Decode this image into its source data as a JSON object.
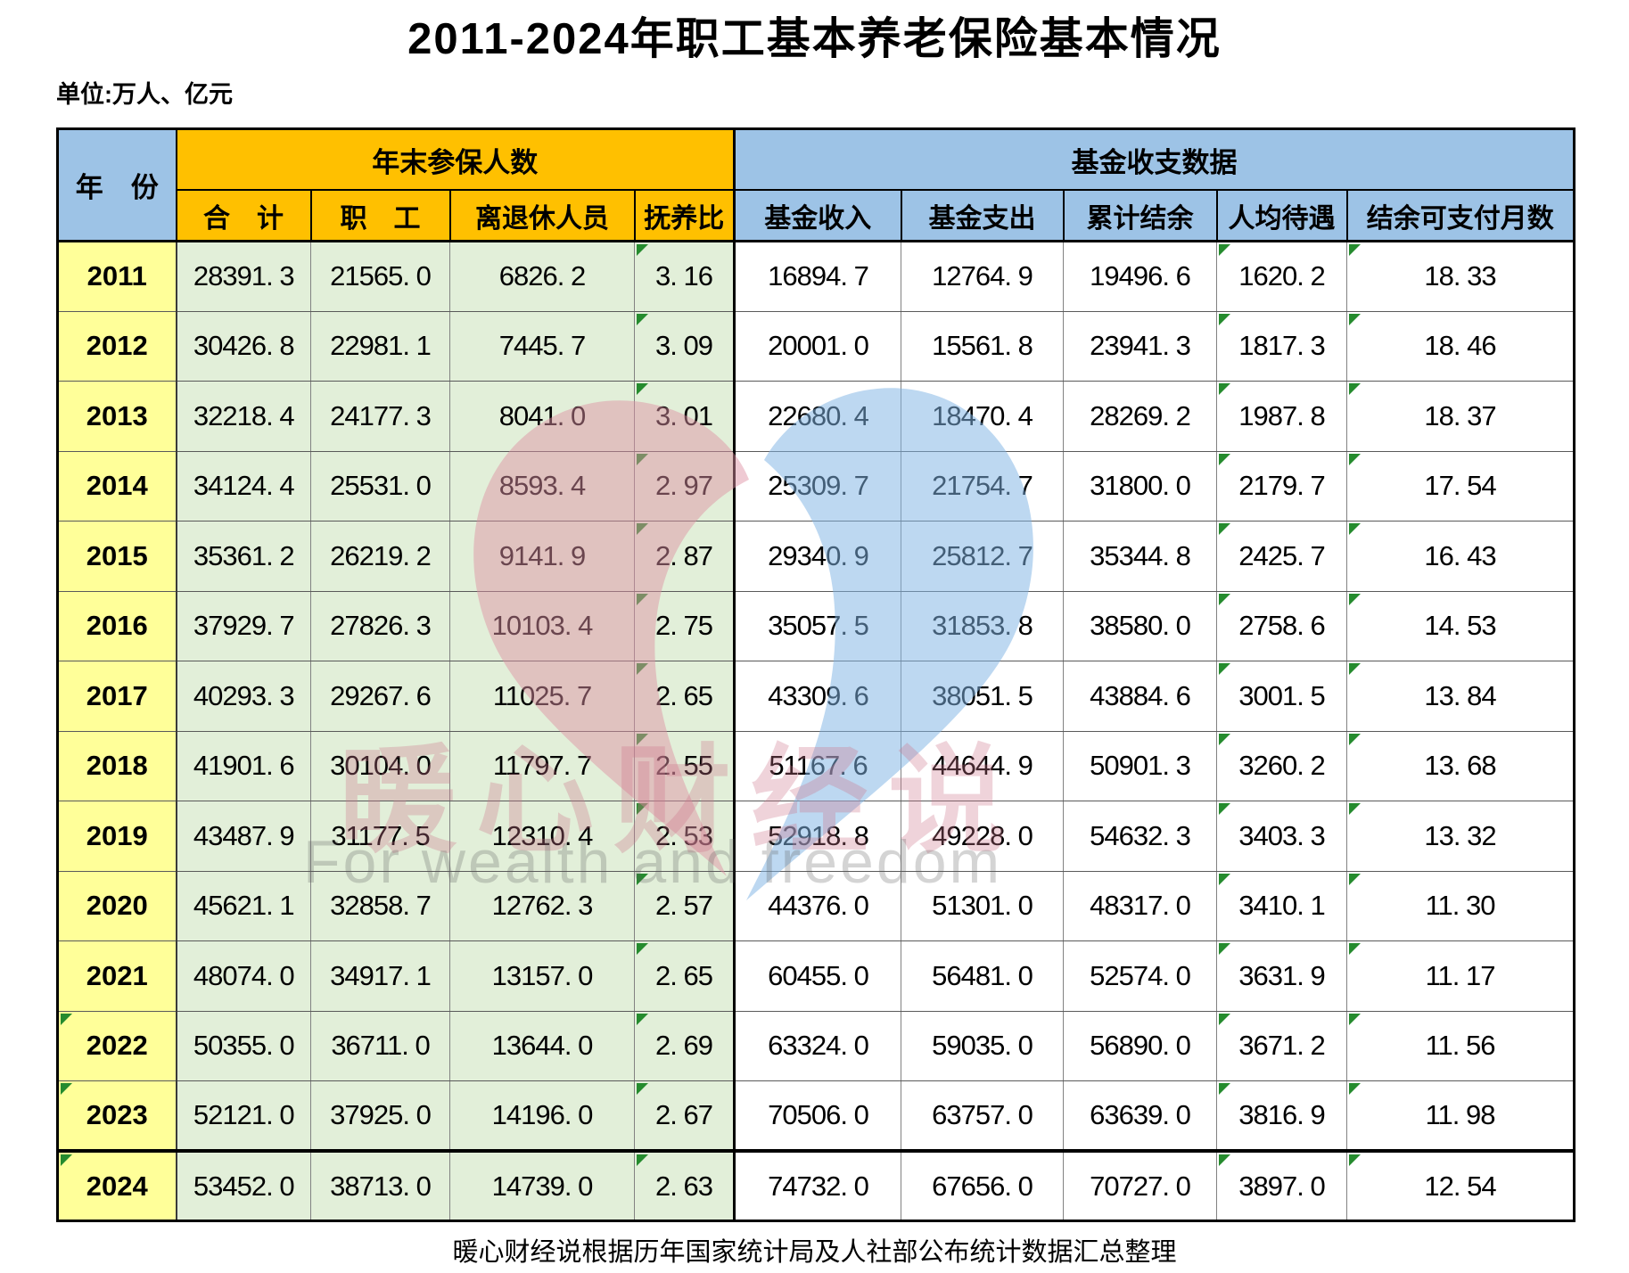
{
  "title": "2011-2024年职工基本养老保险基本情况",
  "unit_note": "单位:万人、亿元",
  "footer": "暖心财经说根据历年国家统计局及人社部公布统计数据汇总整理",
  "colors": {
    "header_orange": "#FFC000",
    "header_blue": "#9DC3E6",
    "year_yellow": "#FFFF99",
    "green_cell": "#E2EFD9",
    "marker_green": "#258B2E",
    "wm_pink_text": "rgba(206,118,139,0.32)",
    "wm_gray_text": "rgba(90,90,90,0.26)",
    "wm_heart_pink": "rgba(222,144,162,0.48)",
    "wm_heart_blue": "rgba(128,181,228,0.52)"
  },
  "watermark": {
    "brand": "暖心财经说",
    "slogan": "For wealth and freedom"
  },
  "table": {
    "year_header": "年　份",
    "group_participants": {
      "label": "年末参保人数",
      "cols": [
        "合　计",
        "职　工",
        "离退休人员",
        "抚养比"
      ]
    },
    "group_fund": {
      "label": "基金收支数据",
      "cols": [
        "基金收入",
        "基金支出",
        "累计结余",
        "人均待遇",
        "结余可支付月数"
      ]
    },
    "columns": [
      {
        "key": "year",
        "label": "年份"
      },
      {
        "key": "insured_total",
        "label": "合计"
      },
      {
        "key": "insured_workers",
        "label": "职工"
      },
      {
        "key": "insured_retirees",
        "label": "离退休人员"
      },
      {
        "key": "dependency_ratio",
        "label": "抚养比"
      },
      {
        "key": "fund_income",
        "label": "基金收入"
      },
      {
        "key": "fund_expense",
        "label": "基金支出"
      },
      {
        "key": "fund_balance",
        "label": "累计结余"
      },
      {
        "key": "avg_benefit",
        "label": "人均待遇"
      },
      {
        "key": "months_payable",
        "label": "结余可支付月数"
      }
    ],
    "marker_columns": [
      "dependency_ratio",
      "avg_benefit",
      "months_payable"
    ],
    "rows": [
      {
        "year": "2011",
        "year_marker": false,
        "thick_top": false,
        "values": [
          "28391. 3",
          "21565. 0",
          "6826. 2",
          "3. 16",
          "16894. 7",
          "12764. 9",
          "19496. 6",
          "1620. 2",
          "18. 33"
        ]
      },
      {
        "year": "2012",
        "year_marker": false,
        "thick_top": false,
        "values": [
          "30426. 8",
          "22981. 1",
          "7445. 7",
          "3. 09",
          "20001. 0",
          "15561. 8",
          "23941. 3",
          "1817. 3",
          "18. 46"
        ]
      },
      {
        "year": "2013",
        "year_marker": false,
        "thick_top": false,
        "values": [
          "32218. 4",
          "24177. 3",
          "8041. 0",
          "3. 01",
          "22680. 4",
          "18470. 4",
          "28269. 2",
          "1987. 8",
          "18. 37"
        ]
      },
      {
        "year": "2014",
        "year_marker": false,
        "thick_top": false,
        "values": [
          "34124. 4",
          "25531. 0",
          "8593. 4",
          "2. 97",
          "25309. 7",
          "21754. 7",
          "31800. 0",
          "2179. 7",
          "17. 54"
        ]
      },
      {
        "year": "2015",
        "year_marker": false,
        "thick_top": false,
        "values": [
          "35361. 2",
          "26219. 2",
          "9141. 9",
          "2. 87",
          "29340. 9",
          "25812. 7",
          "35344. 8",
          "2425. 7",
          "16. 43"
        ]
      },
      {
        "year": "2016",
        "year_marker": false,
        "thick_top": false,
        "values": [
          "37929. 7",
          "27826. 3",
          "10103. 4",
          "2. 75",
          "35057. 5",
          "31853. 8",
          "38580. 0",
          "2758. 6",
          "14. 53"
        ]
      },
      {
        "year": "2017",
        "year_marker": false,
        "thick_top": false,
        "values": [
          "40293. 3",
          "29267. 6",
          "11025. 7",
          "2. 65",
          "43309. 6",
          "38051. 5",
          "43884. 6",
          "3001. 5",
          "13. 84"
        ]
      },
      {
        "year": "2018",
        "year_marker": false,
        "thick_top": false,
        "values": [
          "41901. 6",
          "30104. 0",
          "11797. 7",
          "2. 55",
          "51167. 6",
          "44644. 9",
          "50901. 3",
          "3260. 2",
          "13. 68"
        ]
      },
      {
        "year": "2019",
        "year_marker": false,
        "thick_top": false,
        "values": [
          "43487. 9",
          "31177. 5",
          "12310. 4",
          "2. 53",
          "52918. 8",
          "49228. 0",
          "54632. 3",
          "3403. 3",
          "13. 32"
        ]
      },
      {
        "year": "2020",
        "year_marker": false,
        "thick_top": false,
        "values": [
          "45621. 1",
          "32858. 7",
          "12762. 3",
          "2. 57",
          "44376. 0",
          "51301. 0",
          "48317. 0",
          "3410. 1",
          "11. 30"
        ]
      },
      {
        "year": "2021",
        "year_marker": false,
        "thick_top": false,
        "values": [
          "48074. 0",
          "34917. 1",
          "13157. 0",
          "2. 65",
          "60455. 0",
          "56481. 0",
          "52574. 0",
          "3631. 9",
          "11. 17"
        ]
      },
      {
        "year": "2022",
        "year_marker": true,
        "thick_top": false,
        "values": [
          "50355. 0",
          "36711. 0",
          "13644. 0",
          "2. 69",
          "63324. 0",
          "59035. 0",
          "56890. 0",
          "3671. 2",
          "11. 56"
        ]
      },
      {
        "year": "2023",
        "year_marker": true,
        "thick_top": false,
        "values": [
          "52121. 0",
          "37925. 0",
          "14196. 0",
          "2. 67",
          "70506. 0",
          "63757. 0",
          "63639. 0",
          "3816. 9",
          "11. 98"
        ]
      },
      {
        "year": "2024",
        "year_marker": true,
        "thick_top": true,
        "values": [
          "53452. 0",
          "38713. 0",
          "14739. 0",
          "2. 63",
          "74732. 0",
          "67656. 0",
          "70727. 0",
          "3897. 0",
          "12. 54"
        ]
      }
    ]
  },
  "chart_data": {
    "type": "table",
    "title": "2011-2024年职工基本养老保险基本情况",
    "unit": "单位:万人、亿元",
    "column_groups": [
      {
        "label": "年末参保人数",
        "columns": [
          "合计",
          "职工",
          "离退休人员",
          "抚养比"
        ]
      },
      {
        "label": "基金收支数据",
        "columns": [
          "基金收入",
          "基金支出",
          "累计结余",
          "人均待遇",
          "结余可支付月数"
        ]
      }
    ],
    "columns": [
      "年份",
      "合计",
      "职工",
      "离退休人员",
      "抚养比",
      "基金收入",
      "基金支出",
      "累计结余",
      "人均待遇",
      "结余可支付月数"
    ],
    "rows": [
      [
        2011,
        28391.3,
        21565.0,
        6826.2,
        3.16,
        16894.7,
        12764.9,
        19496.6,
        1620.2,
        18.33
      ],
      [
        2012,
        30426.8,
        22981.1,
        7445.7,
        3.09,
        20001.0,
        15561.8,
        23941.3,
        1817.3,
        18.46
      ],
      [
        2013,
        32218.4,
        24177.3,
        8041.0,
        3.01,
        22680.4,
        18470.4,
        28269.2,
        1987.8,
        18.37
      ],
      [
        2014,
        34124.4,
        25531.0,
        8593.4,
        2.97,
        25309.7,
        21754.7,
        31800.0,
        2179.7,
        17.54
      ],
      [
        2015,
        35361.2,
        26219.2,
        9141.9,
        2.87,
        29340.9,
        25812.7,
        35344.8,
        2425.7,
        16.43
      ],
      [
        2016,
        37929.7,
        27826.3,
        10103.4,
        2.75,
        35057.5,
        31853.8,
        38580.0,
        2758.6,
        14.53
      ],
      [
        2017,
        40293.3,
        29267.6,
        11025.7,
        2.65,
        43309.6,
        38051.5,
        43884.6,
        3001.5,
        13.84
      ],
      [
        2018,
        41901.6,
        30104.0,
        11797.7,
        2.55,
        51167.6,
        44644.9,
        50901.3,
        3260.2,
        13.68
      ],
      [
        2019,
        43487.9,
        31177.5,
        12310.4,
        2.53,
        52918.8,
        49228.0,
        54632.3,
        3403.3,
        13.32
      ],
      [
        2020,
        45621.1,
        32858.7,
        12762.3,
        2.57,
        44376.0,
        51301.0,
        48317.0,
        3410.1,
        11.3
      ],
      [
        2021,
        48074.0,
        34917.1,
        13157.0,
        2.65,
        60455.0,
        56481.0,
        52574.0,
        3631.9,
        11.17
      ],
      [
        2022,
        50355.0,
        36711.0,
        13644.0,
        2.69,
        63324.0,
        59035.0,
        56890.0,
        3671.2,
        11.56
      ],
      [
        2023,
        52121.0,
        37925.0,
        14196.0,
        2.67,
        70506.0,
        63757.0,
        63639.0,
        3816.9,
        11.98
      ],
      [
        2024,
        53452.0,
        38713.0,
        14739.0,
        2.63,
        74732.0,
        67656.0,
        70727.0,
        3897.0,
        12.54
      ]
    ]
  }
}
